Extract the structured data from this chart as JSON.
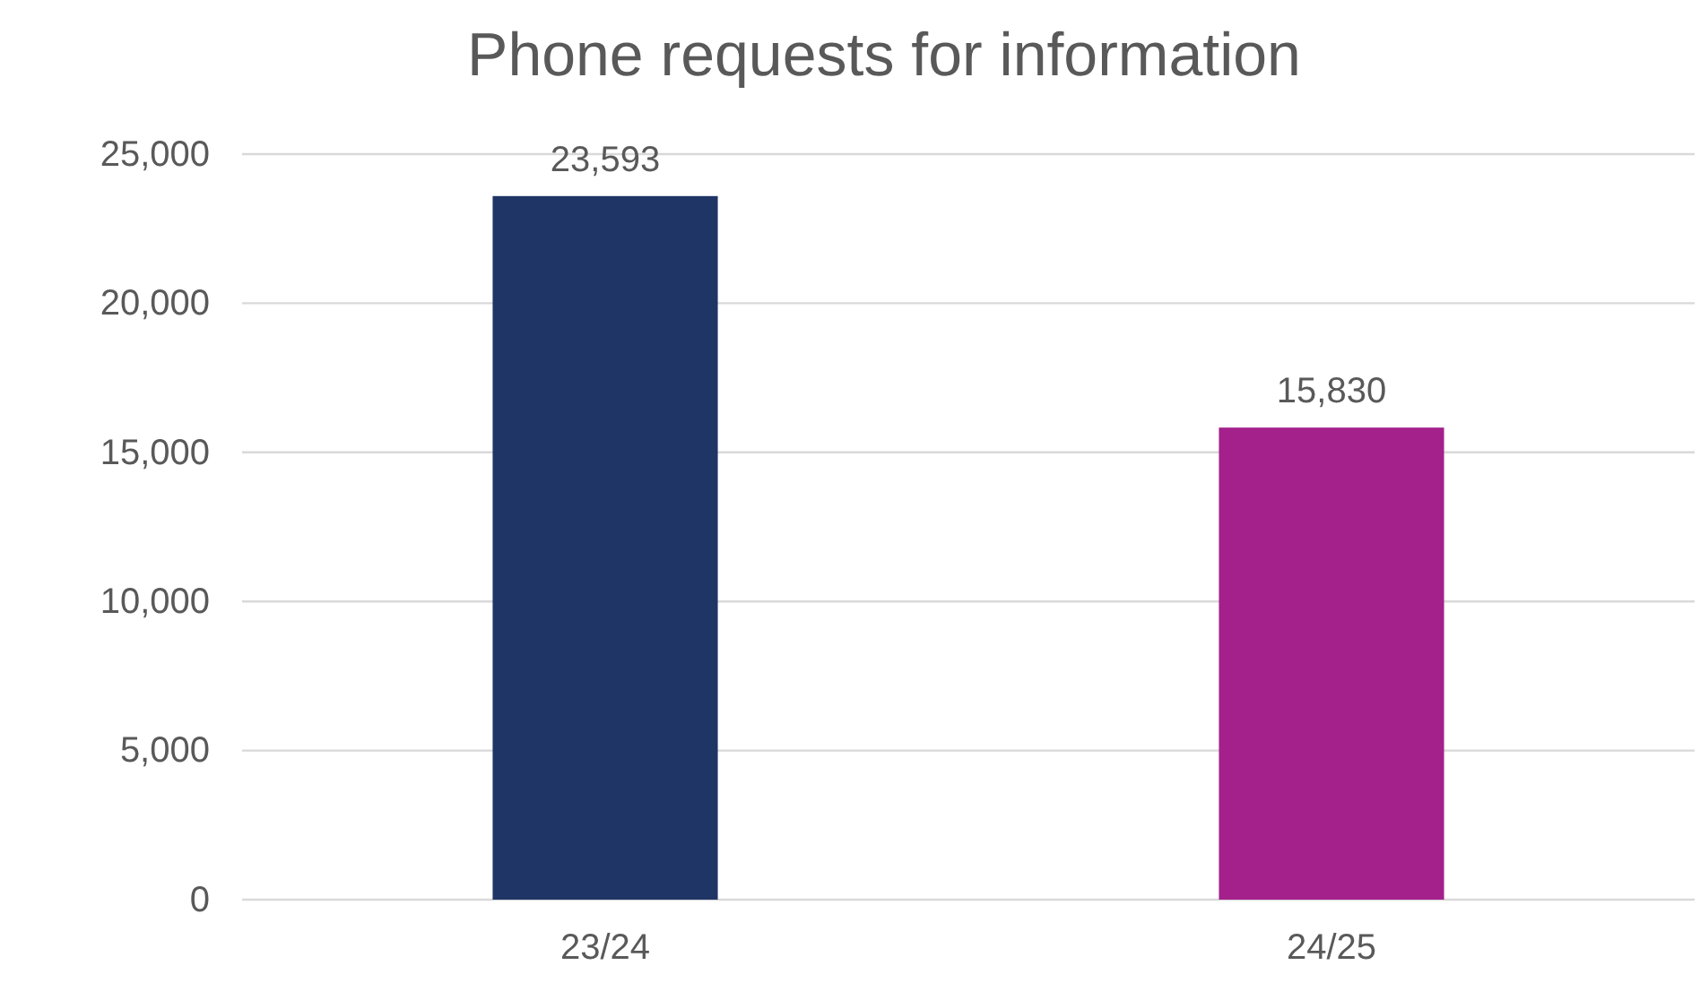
{
  "chart_data": {
    "type": "bar",
    "title": "Phone requests for information",
    "categories": [
      "23/24",
      "24/25"
    ],
    "values": [
      23593,
      15830
    ],
    "value_labels": [
      "23,593",
      "15,830"
    ],
    "colors": [
      "#1f3566",
      "#a4218c"
    ],
    "ylim": [
      0,
      25000
    ],
    "yticks": [
      {
        "value": 0,
        "label": "0"
      },
      {
        "value": 5000,
        "label": "5,000"
      },
      {
        "value": 10000,
        "label": "10,000"
      },
      {
        "value": 15000,
        "label": "15,000"
      },
      {
        "value": 20000,
        "label": "20,000"
      },
      {
        "value": 25000,
        "label": "25,000"
      }
    ],
    "grid": "y"
  }
}
